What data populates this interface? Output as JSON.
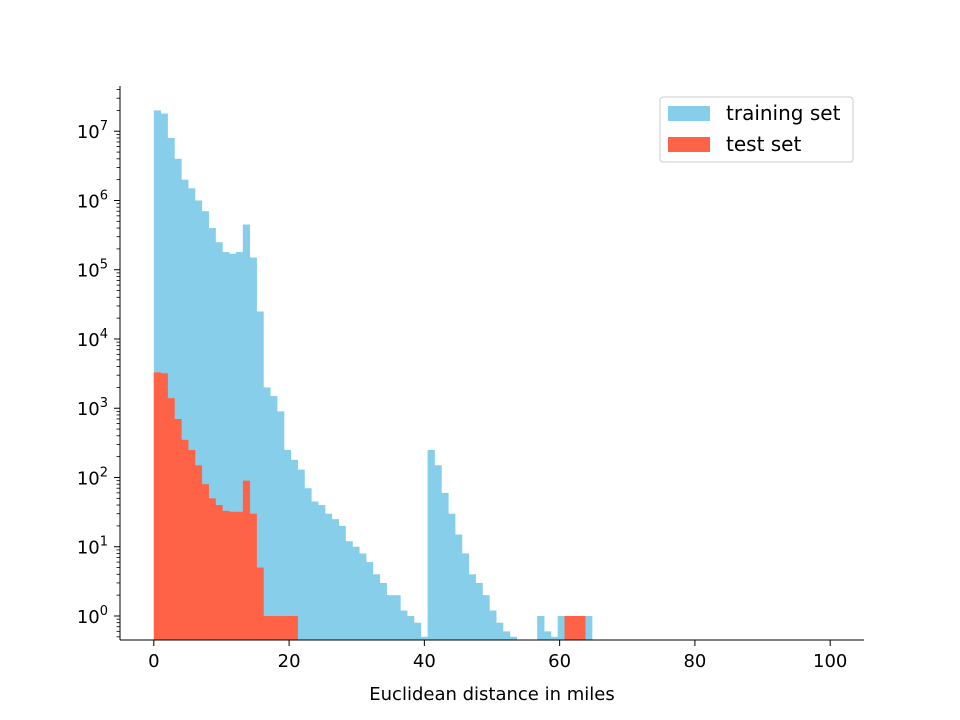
{
  "chart_data": {
    "type": "bar",
    "title": "",
    "xlabel": "Euclidean distance in miles",
    "ylabel": "",
    "yscale": "log",
    "xlim": [
      -5,
      105
    ],
    "ylim": [
      0.45,
      45000000
    ],
    "grid": false,
    "legend_position": "top-right",
    "bin_width": 1.012,
    "x_ticks": [
      0,
      20,
      40,
      60,
      80,
      100
    ],
    "y_ticks": [
      {
        "value": 1,
        "base": "10",
        "exp": "0"
      },
      {
        "value": 10,
        "base": "10",
        "exp": "1"
      },
      {
        "value": 100,
        "base": "10",
        "exp": "2"
      },
      {
        "value": 1000,
        "base": "10",
        "exp": "3"
      },
      {
        "value": 10000,
        "base": "10",
        "exp": "4"
      },
      {
        "value": 100000,
        "base": "10",
        "exp": "5"
      },
      {
        "value": 1000000,
        "base": "10",
        "exp": "6"
      },
      {
        "value": 10000000,
        "base": "10",
        "exp": "7"
      }
    ],
    "series": [
      {
        "name": "training set",
        "color": "#87ceeb",
        "bins": [
          [
            0.0,
            20000000
          ],
          [
            1.01,
            18000000
          ],
          [
            2.02,
            8000000
          ],
          [
            3.04,
            4000000
          ],
          [
            4.05,
            2000000
          ],
          [
            5.06,
            1500000
          ],
          [
            6.07,
            1000000
          ],
          [
            7.08,
            700000
          ],
          [
            8.1,
            400000
          ],
          [
            9.11,
            250000
          ],
          [
            10.12,
            180000
          ],
          [
            11.13,
            170000
          ],
          [
            12.14,
            180000
          ],
          [
            13.16,
            450000
          ],
          [
            14.17,
            150000
          ],
          [
            15.18,
            25000
          ],
          [
            16.19,
            2000
          ],
          [
            17.2,
            1500
          ],
          [
            18.22,
            900
          ],
          [
            19.23,
            250
          ],
          [
            20.24,
            180
          ],
          [
            21.25,
            130
          ],
          [
            22.26,
            70
          ],
          [
            23.28,
            45
          ],
          [
            24.29,
            40
          ],
          [
            25.3,
            30
          ],
          [
            26.31,
            25
          ],
          [
            27.32,
            20
          ],
          [
            28.34,
            12
          ],
          [
            29.35,
            10
          ],
          [
            30.36,
            8
          ],
          [
            31.37,
            6
          ],
          [
            32.38,
            4
          ],
          [
            33.4,
            3
          ],
          [
            34.41,
            2
          ],
          [
            35.42,
            2
          ],
          [
            36.43,
            1.2
          ],
          [
            37.44,
            1
          ],
          [
            38.46,
            0.8
          ],
          [
            39.47,
            0.5
          ],
          [
            40.48,
            250
          ],
          [
            41.5,
            150
          ],
          [
            42.51,
            60
          ],
          [
            43.52,
            30
          ],
          [
            44.53,
            15
          ],
          [
            45.54,
            8
          ],
          [
            46.56,
            4
          ],
          [
            47.57,
            3
          ],
          [
            48.58,
            2
          ],
          [
            49.59,
            1.2
          ],
          [
            50.6,
            0.8
          ],
          [
            51.62,
            0.6
          ],
          [
            52.63,
            0.5
          ],
          [
            53.64,
            0.4
          ],
          [
            54.65,
            0.3
          ],
          [
            55.66,
            0.3
          ],
          [
            56.68,
            1
          ],
          [
            57.69,
            0.6
          ],
          [
            58.7,
            0.5
          ],
          [
            59.71,
            1
          ],
          [
            60.72,
            1
          ],
          [
            61.74,
            1
          ],
          [
            62.75,
            1
          ],
          [
            63.76,
            1
          ]
        ]
      },
      {
        "name": "test set",
        "color": "#ff6347",
        "bins": [
          [
            0.0,
            3300
          ],
          [
            1.01,
            3200
          ],
          [
            2.02,
            1400
          ],
          [
            3.04,
            700
          ],
          [
            4.05,
            350
          ],
          [
            5.06,
            250
          ],
          [
            6.07,
            150
          ],
          [
            7.08,
            80
          ],
          [
            8.1,
            50
          ],
          [
            9.11,
            40
          ],
          [
            10.12,
            33
          ],
          [
            11.13,
            32
          ],
          [
            12.14,
            32
          ],
          [
            13.16,
            90
          ],
          [
            14.17,
            30
          ],
          [
            15.18,
            5
          ],
          [
            16.19,
            1
          ],
          [
            17.2,
            1
          ],
          [
            18.22,
            1
          ],
          [
            19.23,
            1
          ],
          [
            20.24,
            1
          ],
          [
            60.72,
            1
          ],
          [
            61.74,
            1
          ],
          [
            62.75,
            1
          ]
        ]
      }
    ]
  }
}
